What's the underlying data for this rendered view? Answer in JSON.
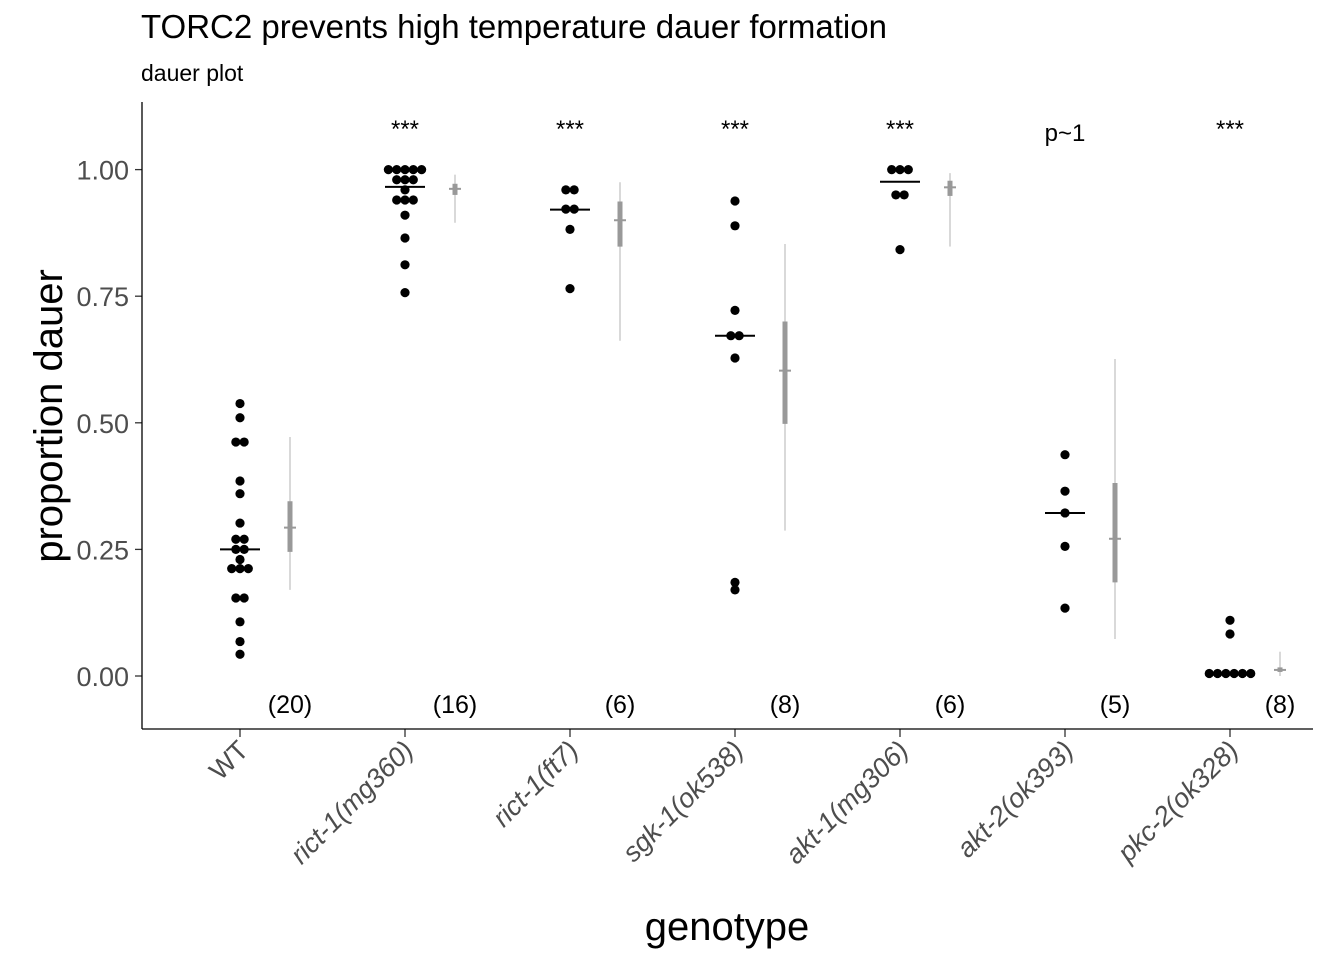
{
  "chart_data": {
    "type": "scatter",
    "title": "TORC2 prevents high temperature dauer formation",
    "subtitle": "dauer plot",
    "xlabel": "genotype",
    "ylabel": "proportion dauer",
    "ylim": [
      -0.1,
      1.12
    ],
    "y_ticks": [
      "0.00",
      "0.25",
      "0.50",
      "0.75",
      "1.00"
    ],
    "grid": false,
    "legend": "none",
    "point_color": "#000000",
    "summary_color": "#999999",
    "categories": [
      "WT",
      "rict-1(mg360)",
      "rict-1(ft7)",
      "sgk-1(ok538)",
      "akt-1(mg306)",
      "akt-2(ok393)",
      "pkc-2(ok328)"
    ],
    "italic_categories": [
      false,
      true,
      true,
      true,
      true,
      true,
      true
    ],
    "groups": [
      {
        "genotype": "WT",
        "n_label": "(20)",
        "significance": "",
        "median": 0.25,
        "points": [
          0.538,
          0.51,
          0.462,
          0.462,
          0.385,
          0.36,
          0.302,
          0.27,
          0.27,
          0.25,
          0.25,
          0.23,
          0.212,
          0.212,
          0.212,
          0.154,
          0.154,
          0.107,
          0.068,
          0.043
        ],
        "estimate": {
          "mean": 0.293,
          "inner": [
            0.245,
            0.345
          ],
          "outer": [
            0.17,
            0.472
          ]
        }
      },
      {
        "genotype": "rict-1(mg360)",
        "n_label": "(16)",
        "significance": "***",
        "median": 0.966,
        "points": [
          1.0,
          1.0,
          1.0,
          1.0,
          1.0,
          0.98,
          0.98,
          0.98,
          0.96,
          0.94,
          0.94,
          0.94,
          0.91,
          0.865,
          0.812,
          0.757
        ],
        "estimate": {
          "mean": 0.962,
          "inner": [
            0.95,
            0.972
          ],
          "outer": [
            0.895,
            0.99
          ]
        }
      },
      {
        "genotype": "rict-1(ft7)",
        "n_label": "(6)",
        "significance": "***",
        "median": 0.921,
        "points": [
          0.96,
          0.96,
          0.922,
          0.922,
          0.882,
          0.765
        ],
        "estimate": {
          "mean": 0.9,
          "inner": [
            0.848,
            0.937
          ],
          "outer": [
            0.662,
            0.975
          ]
        }
      },
      {
        "genotype": "sgk-1(ok538)",
        "n_label": "(8)",
        "significance": "***",
        "median": 0.672,
        "points": [
          0.938,
          0.889,
          0.722,
          0.672,
          0.672,
          0.628,
          0.185,
          0.17
        ],
        "estimate": {
          "mean": 0.603,
          "inner": [
            0.498,
            0.7
          ],
          "outer": [
            0.287,
            0.853
          ]
        }
      },
      {
        "genotype": "akt-1(mg306)",
        "n_label": "(6)",
        "significance": "***",
        "median": 0.976,
        "points": [
          1.0,
          1.0,
          1.0,
          0.95,
          0.95,
          0.842
        ],
        "estimate": {
          "mean": 0.965,
          "inner": [
            0.948,
            0.978
          ],
          "outer": [
            0.848,
            0.993
          ]
        }
      },
      {
        "genotype": "akt-2(ok393)",
        "n_label": "(5)",
        "significance": "p~1",
        "median": 0.322,
        "points": [
          0.437,
          0.365,
          0.322,
          0.256,
          0.134
        ],
        "estimate": {
          "mean": 0.271,
          "inner": [
            0.185,
            0.381
          ],
          "outer": [
            0.073,
            0.626
          ]
        }
      },
      {
        "genotype": "pkc-2(ok328)",
        "n_label": "(8)",
        "significance": "***",
        "median": 0.005,
        "points": [
          0.11,
          0.083,
          0.005,
          0.005,
          0.005,
          0.005,
          0.005,
          0.005
        ],
        "estimate": {
          "mean": 0.012,
          "inner": [
            0.008,
            0.017
          ],
          "outer": [
            0.0,
            0.048
          ]
        }
      }
    ]
  }
}
